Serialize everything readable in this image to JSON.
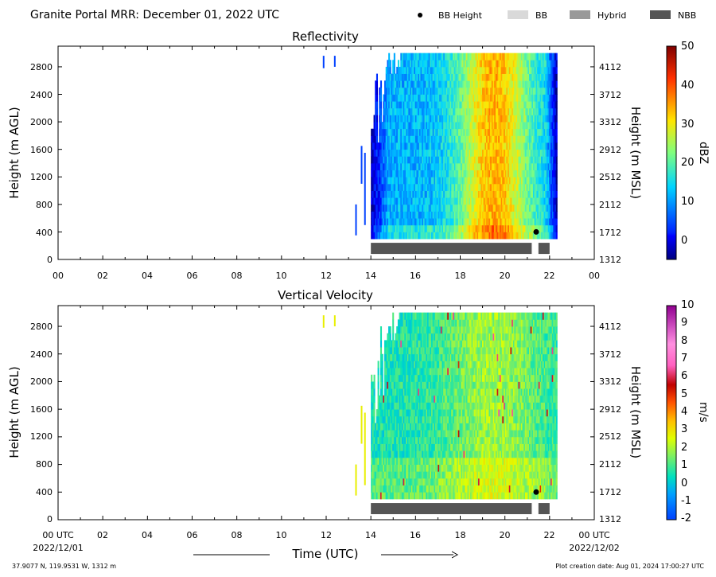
{
  "header": {
    "title": "Granite Portal MRR:  December 01, 2022 UTC"
  },
  "legend": {
    "items": [
      {
        "label": "BB Height",
        "kind": "dot",
        "color": "#000000"
      },
      {
        "label": "BB",
        "kind": "patch",
        "color": "#d9d9d9"
      },
      {
        "label": "Hybrid",
        "kind": "patch",
        "color": "#999999"
      },
      {
        "label": "NBB",
        "kind": "patch",
        "color": "#555555"
      }
    ]
  },
  "footer": {
    "location": "37.9077 N, 119.9531 W, 1312 m",
    "created": "Plot creation date: Aug 01, 2024 17:00:27 UTC",
    "start_date": "2022/12/01",
    "end_date": "2022/12/02"
  },
  "chart_data": [
    {
      "type": "heatmap",
      "title": "Reflectivity",
      "xlabel": "",
      "ylabel": "Height (m AGL)",
      "ylabel_right": "Height (m MSL)",
      "xlim": [
        0,
        24
      ],
      "ylim": [
        0,
        3100
      ],
      "x_ticks": [
        "00",
        "02",
        "04",
        "06",
        "08",
        "10",
        "12",
        "14",
        "16",
        "18",
        "20",
        "22",
        "00"
      ],
      "y_ticks": [
        0,
        400,
        800,
        1200,
        1600,
        2000,
        2400,
        2800
      ],
      "y_ticks_right": [
        1312,
        1712,
        2112,
        2512,
        2912,
        3312,
        3712,
        4112
      ],
      "colorbar": {
        "label": "dBZ",
        "min": -5,
        "max": 50,
        "ticks": [
          0,
          10,
          20,
          30,
          40,
          50
        ],
        "colormap": "jet"
      },
      "data_start_hour": 14.0,
      "data_end_hour": 22.3,
      "height_min": 300,
      "height_max": 3000,
      "bb_height": {
        "hour": 21.4,
        "height": 400
      },
      "bb_class_bar": [
        {
          "class": "NBB",
          "start": 14.0,
          "end": 21.2
        },
        {
          "class": "NBB",
          "start": 21.5,
          "end": 22.0
        }
      ]
    },
    {
      "type": "heatmap",
      "title": "Vertical Velocity",
      "xlabel": "Time (UTC)",
      "ylabel": "Height (m AGL)",
      "ylabel_right": "Height (m MSL)",
      "xlim": [
        0,
        24
      ],
      "ylim": [
        0,
        3100
      ],
      "x_ticks": [
        "00 UTC",
        "02",
        "04",
        "06",
        "08",
        "10",
        "12",
        "14",
        "16",
        "18",
        "20",
        "22",
        "00 UTC"
      ],
      "y_ticks": [
        0,
        400,
        800,
        1200,
        1600,
        2000,
        2400,
        2800
      ],
      "y_ticks_right": [
        1312,
        1712,
        2112,
        2512,
        2912,
        3312,
        3712,
        4112
      ],
      "colorbar": {
        "label": "m/s",
        "min": -2,
        "max": 10,
        "ticks": [
          -2,
          -1,
          0,
          1,
          2,
          3,
          4,
          5,
          6,
          7,
          8,
          9,
          10
        ],
        "colormap": "velocity"
      },
      "data_start_hour": 14.0,
      "data_end_hour": 22.3,
      "height_min": 300,
      "height_max": 3000,
      "bb_height": {
        "hour": 21.4,
        "height": 400
      },
      "bb_class_bar": [
        {
          "class": "NBB",
          "start": 14.0,
          "end": 21.2
        },
        {
          "class": "NBB",
          "start": 21.5,
          "end": 22.0
        }
      ]
    }
  ]
}
